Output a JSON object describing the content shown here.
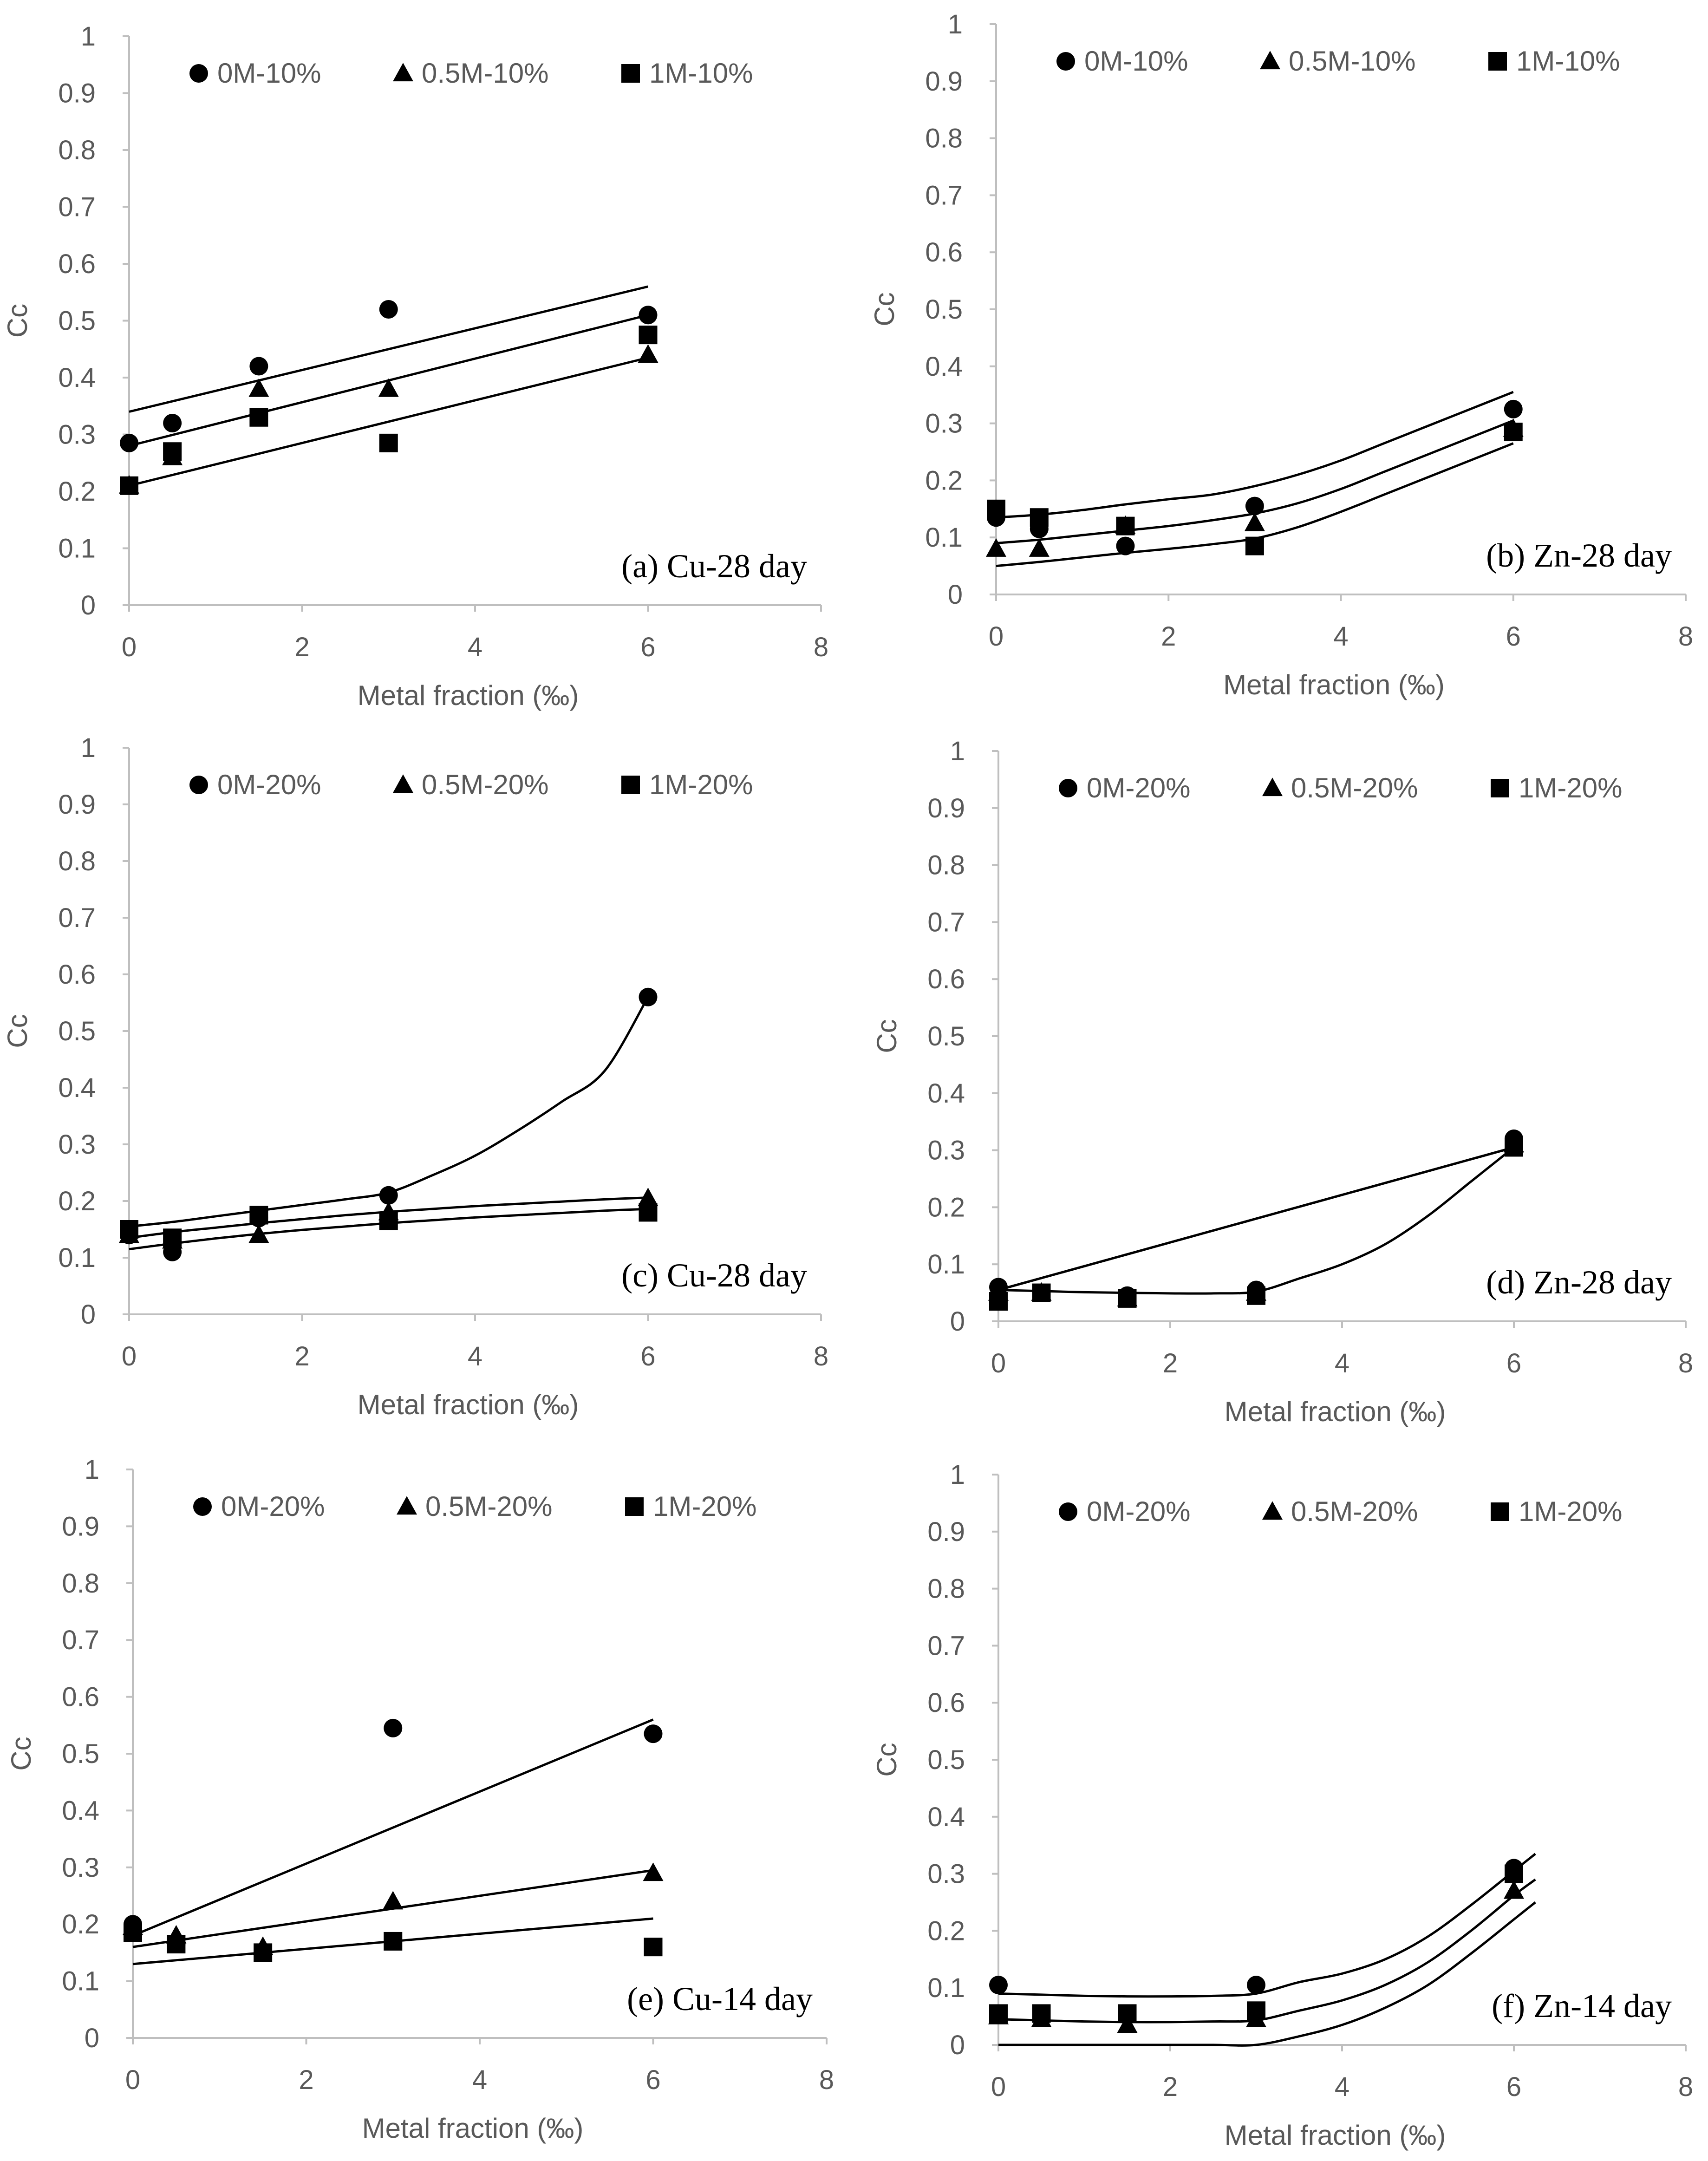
{
  "chart_data": [
    {
      "id": "a",
      "type": "scatter",
      "title": "(a) Cu-28 day",
      "xlabel": "Metal fraction (‰)",
      "ylabel": "Cc",
      "xlim": [
        0,
        8
      ],
      "ylim": [
        0,
        1
      ],
      "xticks": [
        "0",
        "2",
        "4",
        "6",
        "8"
      ],
      "yticks": [
        "0",
        "0.1",
        "0.2",
        "0.3",
        "0.4",
        "0.5",
        "0.6",
        "0.7",
        "0.8",
        "0.9",
        "1"
      ],
      "grid": false,
      "legend": "top",
      "series": [
        {
          "name": "0M-10%",
          "marker": "circle",
          "x": [
            0,
            0.5,
            1.5,
            3,
            6
          ],
          "y": [
            0.285,
            0.32,
            0.42,
            0.52,
            0.51
          ],
          "trend": {
            "x": [
              0,
              6
            ],
            "y": [
              0.34,
              0.56
            ]
          }
        },
        {
          "name": "0.5M-10%",
          "marker": "triangle",
          "x": [
            0,
            0.5,
            1.5,
            3,
            6
          ],
          "y": [
            0.21,
            0.26,
            0.38,
            0.38,
            0.44
          ],
          "trend": {
            "x": [
              0,
              6
            ],
            "y": [
              0.28,
              0.51
            ]
          }
        },
        {
          "name": "1M-10%",
          "marker": "square",
          "x": [
            0,
            0.5,
            1.5,
            3,
            6
          ],
          "y": [
            0.21,
            0.27,
            0.33,
            0.285,
            0.475
          ],
          "trend": {
            "x": [
              0,
              6
            ],
            "y": [
              0.21,
              0.435
            ]
          }
        }
      ]
    },
    {
      "id": "b",
      "type": "scatter",
      "title": "(b) Zn-28 day",
      "xlabel": "Metal fraction (‰)",
      "ylabel": "Cc",
      "xlim": [
        0,
        8
      ],
      "ylim": [
        0,
        1
      ],
      "xticks": [
        "0",
        "2",
        "4",
        "6",
        "8"
      ],
      "yticks": [
        "0",
        "0.1",
        "0.2",
        "0.3",
        "0.4",
        "0.5",
        "0.6",
        "0.7",
        "0.8",
        "0.9",
        "1"
      ],
      "grid": false,
      "legend": "top",
      "series": [
        {
          "name": "0M-10%",
          "marker": "circle",
          "x": [
            0,
            0.5,
            1.5,
            3,
            6
          ],
          "y": [
            0.135,
            0.115,
            0.085,
            0.155,
            0.325
          ],
          "trend": {
            "x": [
              0,
              0.5,
              1,
              1.5,
              2,
              2.5,
              3,
              3.5,
              4,
              4.5,
              5,
              5.5,
              6
            ],
            "y": [
              0.135,
              0.14,
              0.148,
              0.158,
              0.167,
              0.175,
              0.19,
              0.21,
              0.235,
              0.265,
              0.295,
              0.325,
              0.355
            ]
          }
        },
        {
          "name": "0.5M-10%",
          "marker": "triangle",
          "x": [
            0,
            0.5,
            1.5,
            3,
            6
          ],
          "y": [
            0.08,
            0.08,
            0.12,
            0.125,
            0.29
          ],
          "trend": {
            "x": [
              0,
              0.5,
              1,
              1.5,
              2,
              2.5,
              3,
              3.5,
              4,
              4.5,
              5,
              5.5,
              6
            ],
            "y": [
              0.09,
              0.096,
              0.104,
              0.112,
              0.12,
              0.13,
              0.142,
              0.16,
              0.185,
              0.215,
              0.245,
              0.275,
              0.305
            ]
          }
        },
        {
          "name": "1M-10%",
          "marker": "square",
          "x": [
            0,
            0.5,
            1.5,
            3,
            6
          ],
          "y": [
            0.15,
            0.135,
            0.12,
            0.085,
            0.285
          ],
          "trend": {
            "x": [
              0,
              0.5,
              1,
              1.5,
              2,
              2.5,
              3,
              3.5,
              4,
              4.5,
              5,
              5.5,
              6
            ],
            "y": [
              0.05,
              0.057,
              0.065,
              0.073,
              0.08,
              0.088,
              0.098,
              0.118,
              0.145,
              0.175,
              0.205,
              0.235,
              0.265
            ]
          }
        }
      ]
    },
    {
      "id": "c",
      "type": "scatter",
      "title": "(c) Cu-28 day",
      "xlabel": "Metal fraction (‰)",
      "ylabel": "Cc",
      "xlim": [
        0,
        8
      ],
      "ylim": [
        0,
        1
      ],
      "xticks": [
        "0",
        "2",
        "4",
        "6",
        "8"
      ],
      "yticks": [
        "0",
        "0.1",
        "0.2",
        "0.3",
        "0.4",
        "0.5",
        "0.6",
        "0.7",
        "0.8",
        "0.9",
        "1"
      ],
      "grid": false,
      "legend": "top",
      "series": [
        {
          "name": "0M-20%",
          "marker": "circle",
          "x": [
            0,
            0.5,
            1.5,
            3,
            6
          ],
          "y": [
            0.14,
            0.11,
            0.17,
            0.21,
            0.56
          ],
          "trend": {
            "x": [
              0,
              0.5,
              1,
              1.5,
              2,
              2.5,
              3,
              3.5,
              4,
              4.5,
              5,
              5.5,
              6
            ],
            "y": [
              0.155,
              0.163,
              0.173,
              0.183,
              0.193,
              0.203,
              0.215,
              0.245,
              0.28,
              0.325,
              0.375,
              0.43,
              0.56
            ]
          }
        },
        {
          "name": "0.5M-20%",
          "marker": "triangle",
          "x": [
            0,
            0.5,
            1.5,
            3,
            6
          ],
          "y": [
            0.14,
            0.13,
            0.14,
            0.18,
            0.205
          ],
          "trend": {
            "x": [
              0,
              0.5,
              1,
              1.5,
              2,
              2.5,
              3,
              3.5,
              4,
              4.5,
              5,
              5.5,
              6
            ],
            "y": [
              0.135,
              0.145,
              0.153,
              0.161,
              0.168,
              0.175,
              0.181,
              0.186,
              0.191,
              0.195,
              0.199,
              0.203,
              0.206
            ]
          }
        },
        {
          "name": "1M-20%",
          "marker": "square",
          "x": [
            0,
            0.5,
            1.5,
            3,
            6
          ],
          "y": [
            0.15,
            0.135,
            0.175,
            0.165,
            0.18
          ],
          "trend": {
            "x": [
              0,
              0.5,
              1,
              1.5,
              2,
              2.5,
              3,
              3.5,
              4,
              4.5,
              5,
              5.5,
              6
            ],
            "y": [
              0.115,
              0.125,
              0.134,
              0.142,
              0.149,
              0.155,
              0.161,
              0.166,
              0.171,
              0.175,
              0.179,
              0.183,
              0.186
            ]
          }
        }
      ]
    },
    {
      "id": "d",
      "type": "scatter",
      "title": "(d) Zn-28 day",
      "xlabel": "Metal fraction (‰)",
      "ylabel": "Cc",
      "xlim": [
        0,
        8
      ],
      "ylim": [
        0,
        1
      ],
      "xticks": [
        "0",
        "2",
        "4",
        "6",
        "8"
      ],
      "yticks": [
        "0",
        "0.1",
        "0.2",
        "0.3",
        "0.4",
        "0.5",
        "0.6",
        "0.7",
        "0.8",
        "0.9",
        "1"
      ],
      "grid": false,
      "legend": "top",
      "series": [
        {
          "name": "0M-20%",
          "marker": "circle",
          "x": [
            0,
            0.5,
            1.5,
            3,
            6
          ],
          "y": [
            0.06,
            0.05,
            0.045,
            0.055,
            0.32
          ],
          "trend": {
            "x": [
              0,
              0.5,
              1,
              1.5,
              2,
              2.5,
              3,
              3.5,
              4,
              4.5,
              5,
              5.5,
              6
            ],
            "y": [
              0.055,
              0.053,
              0.051,
              0.05,
              0.049,
              0.049,
              0.052,
              0.075,
              0.1,
              0.135,
              0.185,
              0.245,
              0.305
            ]
          }
        },
        {
          "name": "0.5M-20%",
          "marker": "triangle",
          "x": [
            0,
            0.5,
            1.5,
            3,
            6
          ],
          "y": [
            0.05,
            0.05,
            0.04,
            0.05,
            0.31
          ],
          "trend": {
            "x": [
              0,
              6
            ],
            "y": [
              0.055,
              0.305
            ]
          }
        },
        {
          "name": "1M-20%",
          "marker": "square",
          "x": [
            0,
            0.5,
            1.5,
            3,
            6
          ],
          "y": [
            0.035,
            0.05,
            0.04,
            0.045,
            0.305
          ],
          "trend": {
            "x": [
              0,
              6
            ],
            "y": [
              0.055,
              0.305
            ]
          }
        }
      ]
    },
    {
      "id": "e",
      "type": "scatter",
      "title": "(e) Cu-14 day",
      "xlabel": "Metal fraction (‰)",
      "ylabel": "Cc",
      "xlim": [
        0,
        8
      ],
      "ylim": [
        0,
        1
      ],
      "xticks": [
        "0",
        "2",
        "4",
        "6",
        "8"
      ],
      "yticks": [
        "0",
        "0.1",
        "0.2",
        "0.3",
        "0.4",
        "0.5",
        "0.6",
        "0.7",
        "0.8",
        "0.9",
        "1"
      ],
      "grid": false,
      "legend": "top",
      "series": [
        {
          "name": "0M-20%",
          "marker": "circle",
          "x": [
            0,
            0.5,
            1.5,
            3,
            6
          ],
          "y": [
            0.2,
            0.165,
            0.15,
            0.545,
            0.535
          ],
          "trend": {
            "x": [
              0,
              6
            ],
            "y": [
              0.18,
              0.56
            ]
          }
        },
        {
          "name": "0.5M-20%",
          "marker": "triangle",
          "x": [
            0,
            0.5,
            1.5,
            3,
            6
          ],
          "y": [
            0.195,
            0.18,
            0.16,
            0.24,
            0.29
          ],
          "trend": {
            "x": [
              0,
              6
            ],
            "y": [
              0.16,
              0.295
            ]
          }
        },
        {
          "name": "1M-20%",
          "marker": "square",
          "x": [
            0,
            0.5,
            1.5,
            3,
            6
          ],
          "y": [
            0.185,
            0.165,
            0.15,
            0.17,
            0.16
          ],
          "trend": {
            "x": [
              0,
              6
            ],
            "y": [
              0.13,
              0.21
            ]
          }
        }
      ]
    },
    {
      "id": "f",
      "type": "scatter",
      "title": "(f) Zn-14 day",
      "xlabel": "Metal fraction (‰)",
      "ylabel": "Cc",
      "xlim": [
        0,
        8
      ],
      "ylim": [
        0,
        1
      ],
      "xticks": [
        "0",
        "2",
        "4",
        "6",
        "8"
      ],
      "yticks": [
        "0",
        "0.1",
        "0.2",
        "0.3",
        "0.4",
        "0.5",
        "0.6",
        "0.7",
        "0.8",
        "0.9",
        "1"
      ],
      "grid": false,
      "legend": "top",
      "series": [
        {
          "name": "0M-20%",
          "marker": "circle",
          "x": [
            0,
            0.5,
            1.5,
            3,
            6
          ],
          "y": [
            0.105,
            0.055,
            0.055,
            0.105,
            0.31
          ],
          "trend": {
            "x": [
              0,
              0.5,
              1,
              1.5,
              2,
              2.5,
              3,
              3.5,
              4,
              4.5,
              5,
              5.5,
              6,
              6.25
            ],
            "y": [
              0.09,
              0.088,
              0.086,
              0.085,
              0.085,
              0.086,
              0.09,
              0.11,
              0.125,
              0.15,
              0.19,
              0.245,
              0.305,
              0.335
            ]
          }
        },
        {
          "name": "0.5M-20%",
          "marker": "triangle",
          "x": [
            0,
            0.5,
            1.5,
            3,
            6
          ],
          "y": [
            0.05,
            0.045,
            0.035,
            0.045,
            0.27
          ],
          "trend": {
            "x": [
              0,
              0.5,
              1,
              1.5,
              2,
              2.5,
              3,
              3.5,
              4,
              4.5,
              5,
              5.5,
              6,
              6.25
            ],
            "y": [
              0.045,
              0.043,
              0.041,
              0.04,
              0.04,
              0.041,
              0.043,
              0.06,
              0.078,
              0.105,
              0.145,
              0.2,
              0.262,
              0.29
            ]
          }
        },
        {
          "name": "1M-20%",
          "marker": "square",
          "x": [
            0,
            0.5,
            1.5,
            3,
            6
          ],
          "y": [
            0.055,
            0.055,
            0.055,
            0.06,
            0.3
          ],
          "trend": {
            "x": [
              0,
              0.5,
              1,
              1.5,
              2,
              2.5,
              3,
              3.5,
              4,
              4.5,
              5,
              5.5,
              6,
              6.25
            ],
            "y": [
              0.0,
              0.0,
              0.0,
              0.0,
              0.0,
              0.0,
              0.0,
              0.015,
              0.035,
              0.065,
              0.105,
              0.16,
              0.22,
              0.25
            ]
          }
        }
      ]
    }
  ]
}
